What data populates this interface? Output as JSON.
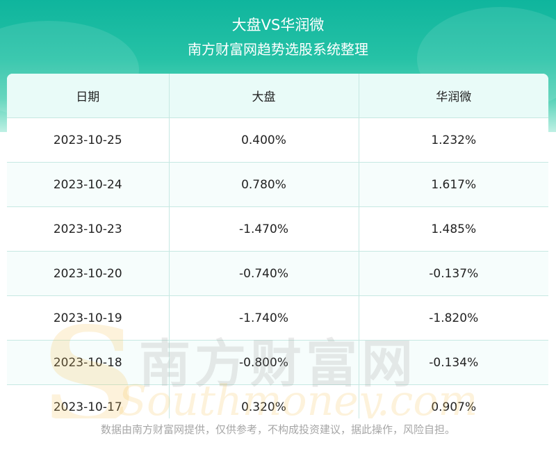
{
  "header": {
    "title": "大盘VS华润微",
    "subtitle": "南方财富网趋势选股系统整理"
  },
  "watermark": {
    "brand_cn": "南方财富网",
    "brand_en": "Southmoney.com"
  },
  "footer": {
    "disclaimer": "数据由南方财富网提供，仅供参考，不构成投资建议，据此操作，风险自担。"
  },
  "colors": {
    "header_top": "#0fb59d",
    "header_bottom": "#bff0e4",
    "table_header_bg": "#e9fbf8",
    "border": "#c6e8e2"
  },
  "chart_data": {
    "type": "table",
    "title": "大盘VS华润微",
    "subtitle": "南方财富网趋势选股系统整理",
    "columns": [
      "日期",
      "大盘",
      "华润微"
    ],
    "rows": [
      [
        "2023-10-25",
        "0.400%",
        "1.232%"
      ],
      [
        "2023-10-24",
        "0.780%",
        "1.617%"
      ],
      [
        "2023-10-23",
        "-1.470%",
        "1.485%"
      ],
      [
        "2023-10-20",
        "-0.740%",
        "-0.137%"
      ],
      [
        "2023-10-19",
        "-1.740%",
        "-1.820%"
      ],
      [
        "2023-10-18",
        "-0.800%",
        "-0.134%"
      ],
      [
        "2023-10-17",
        "0.320%",
        "0.907%"
      ]
    ]
  }
}
